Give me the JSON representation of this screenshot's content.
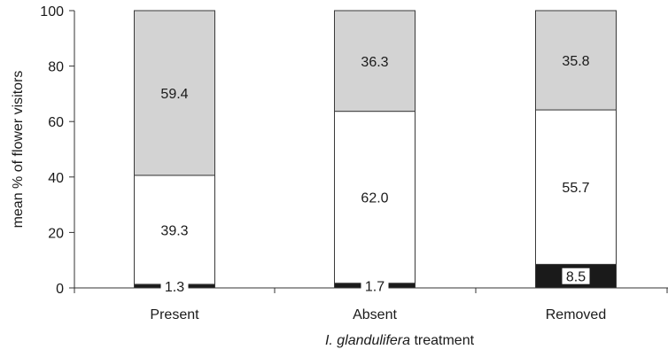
{
  "chart_data": {
    "type": "bar",
    "stacked": true,
    "categories": [
      "Present",
      "Absent",
      "Removed"
    ],
    "series": [
      {
        "key": "bottom",
        "color": "#1a1a1a",
        "values": [
          1.3,
          1.7,
          8.5
        ]
      },
      {
        "key": "middle",
        "color": "#ffffff",
        "values": [
          39.3,
          62.0,
          55.7
        ]
      },
      {
        "key": "top",
        "color": "#d3d3d3",
        "values": [
          59.4,
          36.3,
          35.8
        ]
      }
    ],
    "data_labels": {
      "bottom": [
        "1.3",
        "1.7",
        "8.5"
      ],
      "middle": [
        "39.3",
        "62.0",
        "55.7"
      ],
      "top": [
        "59.4",
        "36.3",
        "35.8"
      ]
    },
    "ylabel": "mean % of flower visitors",
    "xlabel_italic": "I. glandulifera",
    "xlabel_rest": " treatment",
    "ylim": [
      0,
      100
    ],
    "yticks": [
      0,
      20,
      40,
      60,
      80,
      100
    ],
    "grid": false,
    "legend": "none"
  }
}
